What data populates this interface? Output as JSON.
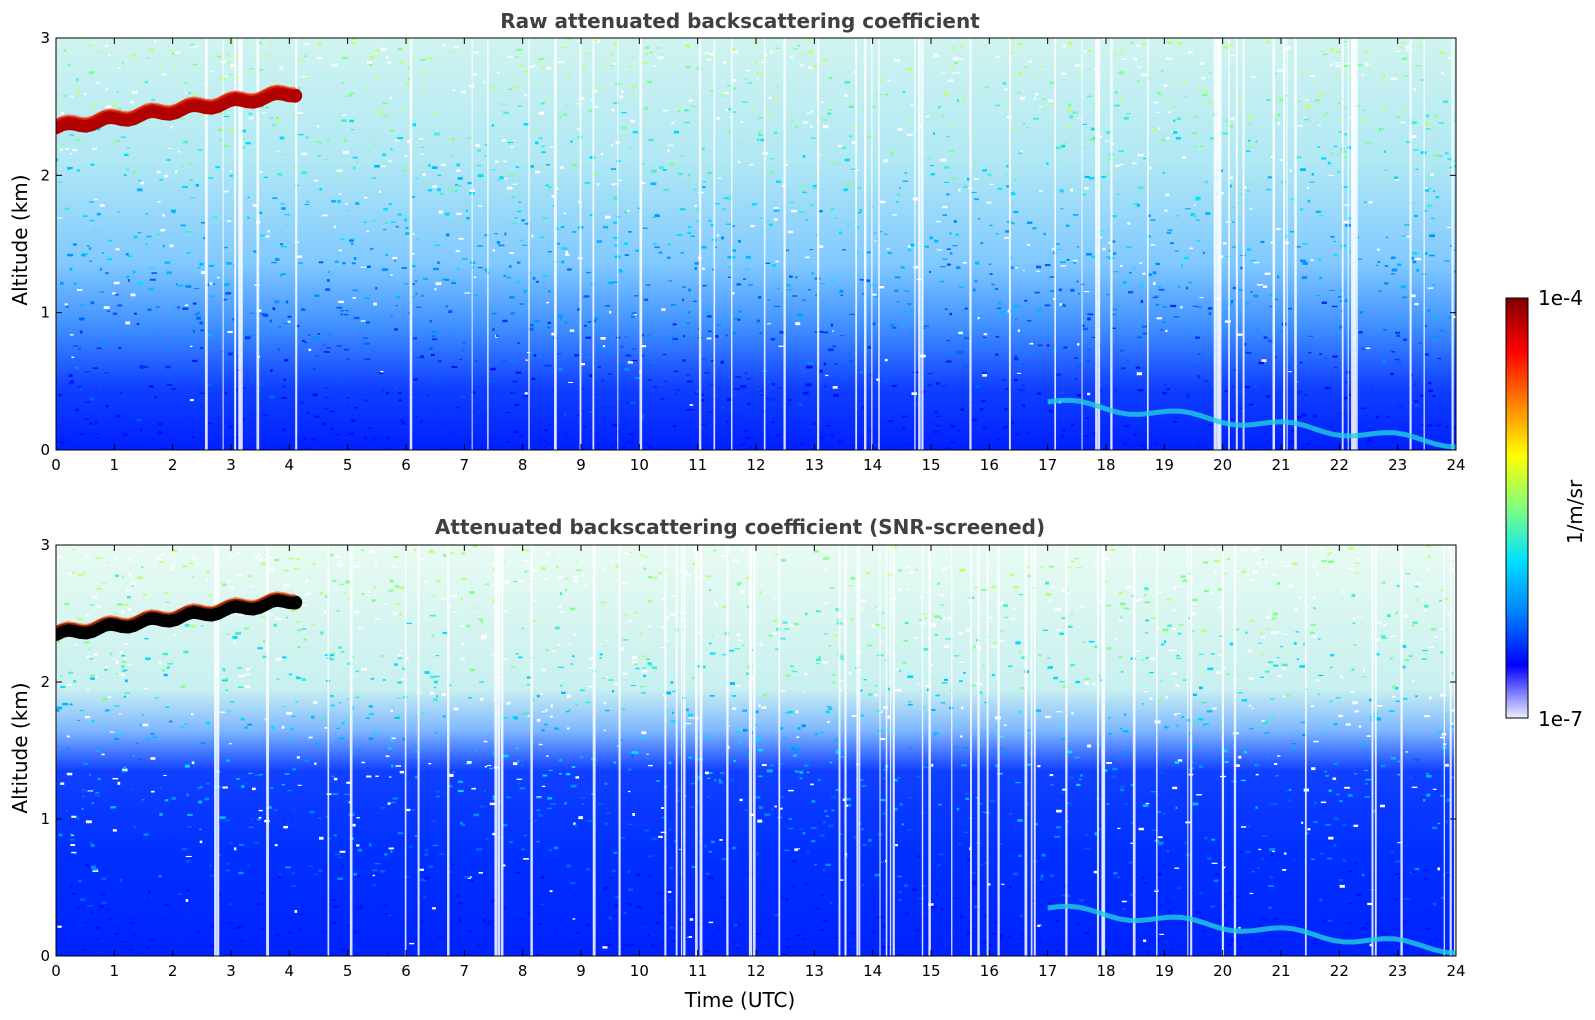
{
  "chart_data": [
    {
      "type": "heatmap",
      "title": "Raw attenuated backscattering coefficient",
      "xlabel": "",
      "ylabel": "Altitude (km)",
      "xlim": [
        0,
        24
      ],
      "ylim": [
        0,
        3
      ],
      "xticks": [
        0,
        1,
        2,
        3,
        4,
        5,
        6,
        7,
        8,
        9,
        10,
        11,
        12,
        13,
        14,
        15,
        16,
        17,
        18,
        19,
        20,
        21,
        22,
        23,
        24
      ],
      "yticks": [
        0,
        1,
        2,
        3
      ],
      "features": [
        {
          "name": "elevated aerosol/cloud layer",
          "time_start": 0.0,
          "time_end": 4.1,
          "altitude_start": 2.35,
          "altitude_end": 2.6,
          "level": "1e-4"
        },
        {
          "name": "boundary layer top",
          "time_start": 17.0,
          "time_end": 24.0,
          "altitude_start": 0.35,
          "altitude_end": 0.05,
          "level": "2e-6"
        }
      ],
      "screened": false
    },
    {
      "type": "heatmap",
      "title": "Attenuated backscattering coefficient (SNR-screened)",
      "xlabel": "Time (UTC)",
      "ylabel": "Altitude (km)",
      "xlim": [
        0,
        24
      ],
      "ylim": [
        0,
        3
      ],
      "xticks": [
        0,
        1,
        2,
        3,
        4,
        5,
        6,
        7,
        8,
        9,
        10,
        11,
        12,
        13,
        14,
        15,
        16,
        17,
        18,
        19,
        20,
        21,
        22,
        23,
        24
      ],
      "yticks": [
        0,
        1,
        2,
        3
      ],
      "features": [
        {
          "name": "elevated aerosol/cloud layer",
          "time_start": 0.0,
          "time_end": 4.1,
          "altitude_start": 2.35,
          "altitude_end": 2.6,
          "level": "saturated"
        },
        {
          "name": "boundary layer top",
          "time_start": 17.0,
          "time_end": 24.0,
          "altitude_start": 0.35,
          "altitude_end": 0.05,
          "level": "2e-6"
        }
      ],
      "screened": true
    }
  ],
  "colorbar": {
    "label": "1/m/sr",
    "max_label": "1e-4",
    "min_label": "1e-7",
    "colors": [
      "#eeeeff",
      "#0000ff",
      "#0080ff",
      "#00e0ff",
      "#80ff80",
      "#ffff00",
      "#ff8000",
      "#ff0000",
      "#800000"
    ]
  }
}
